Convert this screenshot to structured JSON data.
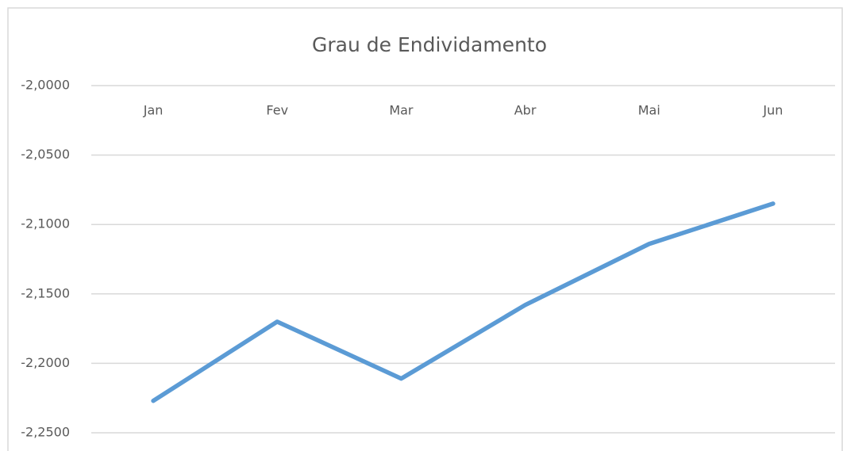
{
  "chart_data": {
    "type": "line",
    "title": "Grau de Endividamento",
    "categories": [
      "Jan",
      "Fev",
      "Mar",
      "Abr",
      "Mai",
      "Jun"
    ],
    "series": [
      {
        "name": "Grau de Endividamento",
        "color": "#5b9bd5",
        "values": [
          -2.227,
          -2.17,
          -2.211,
          -2.158,
          -2.114,
          -2.085
        ]
      }
    ],
    "ylim": [
      -2.25,
      -2.0
    ],
    "yticks": [
      {
        "value": -2.25,
        "label": "-2,2500"
      },
      {
        "value": -2.2,
        "label": "-2,2000"
      },
      {
        "value": -2.15,
        "label": "-2,1500"
      },
      {
        "value": -2.1,
        "label": "-2,1000"
      },
      {
        "value": -2.05,
        "label": "-2,0500"
      },
      {
        "value": -2.0,
        "label": "-2,0000"
      }
    ],
    "grid": true
  }
}
